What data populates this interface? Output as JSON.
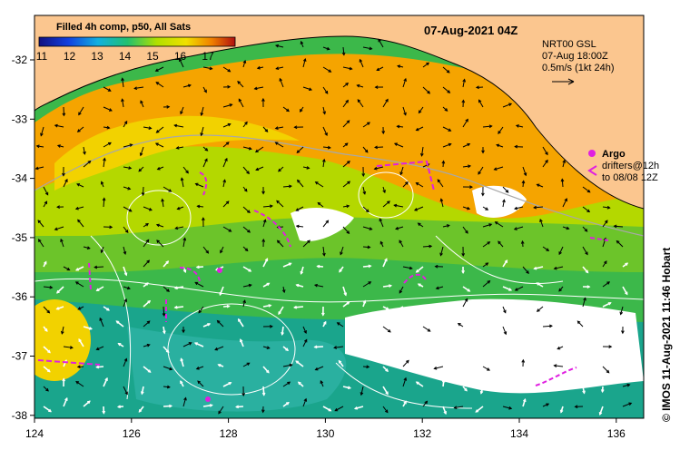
{
  "date_label": "07-Aug-2021 04Z",
  "legend": {
    "title": "Filled 4h comp, p50, All Sats",
    "ticks": [
      "11",
      "12",
      "13",
      "14",
      "15",
      "16",
      "17"
    ]
  },
  "current_model": {
    "line1": "NRT00 GSL",
    "line2": "07-Aug 18:00Z",
    "line3": "0.5m/s (1kt 24h)"
  },
  "argo_label": "Argo",
  "drifter_label": {
    "line1": "drifters@12h",
    "line2": "to 08/08 12Z"
  },
  "credit": "© IMOS 11-Aug-2021 11:46 Hobart",
  "axes": {
    "x_ticks": [
      "124",
      "126",
      "128",
      "130",
      "132",
      "134",
      "136"
    ],
    "y_ticks": [
      "-32",
      "-33",
      "-34",
      "-35",
      "-36",
      "-37",
      "-38"
    ]
  },
  "colors": {
    "land": "#fbc68f",
    "warm": "#f5a400",
    "mid_warm": "#f2d200",
    "mid": "#8fcc00",
    "cool": "#3cb84a",
    "cold": "#1aa58c",
    "colder": "#2c8fc8",
    "cloud": "#ffffff",
    "drifter": "#e020e0"
  }
}
